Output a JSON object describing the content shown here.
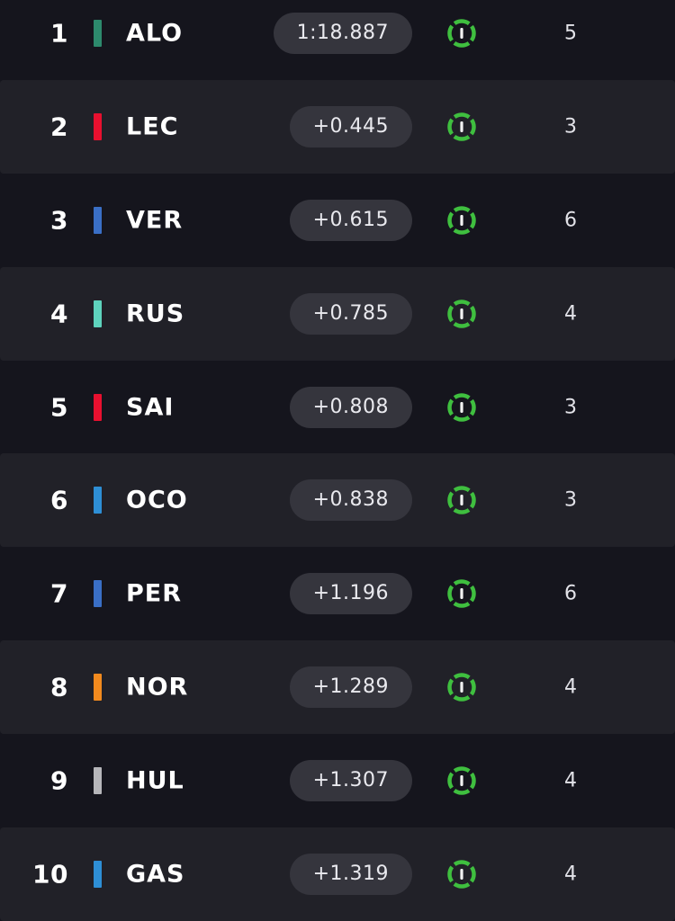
{
  "leaderboard": {
    "rows": [
      {
        "position": "1",
        "driver": "ALO",
        "time": "1:18.887",
        "laps": "5",
        "team_color": "#2d8a6d",
        "tyre_icon": "medium-tyre-icon",
        "tyre_color": "#3fbf3f"
      },
      {
        "position": "2",
        "driver": "LEC",
        "time": "+0.445",
        "laps": "3",
        "team_color": "#e8102f",
        "tyre_icon": "medium-tyre-icon",
        "tyre_color": "#3fbf3f"
      },
      {
        "position": "3",
        "driver": "VER",
        "time": "+0.615",
        "laps": "6",
        "team_color": "#3a6fc6",
        "tyre_icon": "medium-tyre-icon",
        "tyre_color": "#3fbf3f"
      },
      {
        "position": "4",
        "driver": "RUS",
        "time": "+0.785",
        "laps": "4",
        "team_color": "#5ed3bd",
        "tyre_icon": "medium-tyre-icon",
        "tyre_color": "#3fbf3f"
      },
      {
        "position": "5",
        "driver": "SAI",
        "time": "+0.808",
        "laps": "3",
        "team_color": "#e8102f",
        "tyre_icon": "medium-tyre-icon",
        "tyre_color": "#3fbf3f"
      },
      {
        "position": "6",
        "driver": "OCO",
        "time": "+0.838",
        "laps": "3",
        "team_color": "#2e8fd6",
        "tyre_icon": "medium-tyre-icon",
        "tyre_color": "#3fbf3f"
      },
      {
        "position": "7",
        "driver": "PER",
        "time": "+1.196",
        "laps": "6",
        "team_color": "#3a6fc6",
        "tyre_icon": "medium-tyre-icon",
        "tyre_color": "#3fbf3f"
      },
      {
        "position": "8",
        "driver": "NOR",
        "time": "+1.289",
        "laps": "4",
        "team_color": "#f28a1e",
        "tyre_icon": "medium-tyre-icon",
        "tyre_color": "#3fbf3f"
      },
      {
        "position": "9",
        "driver": "HUL",
        "time": "+1.307",
        "laps": "4",
        "team_color": "#b6b6ba",
        "tyre_icon": "medium-tyre-icon",
        "tyre_color": "#3fbf3f"
      },
      {
        "position": "10",
        "driver": "GAS",
        "time": "+1.319",
        "laps": "4",
        "team_color": "#2e8fd6",
        "tyre_icon": "medium-tyre-icon",
        "tyre_color": "#3fbf3f"
      }
    ]
  }
}
